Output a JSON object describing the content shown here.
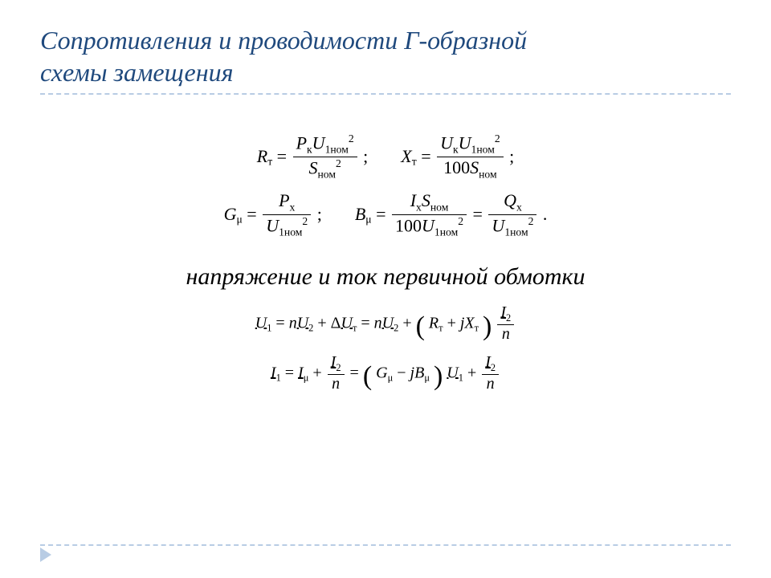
{
  "colors": {
    "title": "#1f497d",
    "divider": "#b8cce4",
    "text": "#000000",
    "background": "#ffffff"
  },
  "typography": {
    "title_fontsize": 32,
    "subtitle_fontsize": 30,
    "formula_fontsize": 22,
    "formula_small_fontsize": 20,
    "family": "Times New Roman",
    "title_style": "italic",
    "subtitle_style": "italic"
  },
  "title_line1": "Сопротивления и проводимости Г-образной",
  "title_line2": "схемы замещения",
  "subtitle": "напряжение и ток первичной обмотки",
  "eq1": {
    "R_sym": "R",
    "R_sub": "т",
    "eq": "=",
    "num": {
      "P": "P",
      "Psub": "к",
      "U": "U",
      "Usub": "1ном",
      "Usup": "2"
    },
    "den": {
      "S": "S",
      "Ssub": "ном",
      "Ssup": "2"
    },
    "semi": ";",
    "X_sym": "X",
    "X_sub": "т",
    "num2": {
      "U1": "U",
      "U1sub": "к",
      "U2": "U",
      "U2sub": "1ном",
      "U2sup": "2"
    },
    "den2": {
      "c": "100",
      "S": "S",
      "Ssub": "ном"
    },
    "semi2": ";"
  },
  "eq2": {
    "G_sym": "G",
    "G_sub": "μ",
    "eq": "=",
    "num": {
      "P": "P",
      "Psub": "х"
    },
    "den": {
      "U": "U",
      "Usub": "1ном",
      "Usup": "2"
    },
    "semi": ";",
    "B_sym": "B",
    "B_sub": "μ",
    "num2": {
      "I": "I",
      "Isub": "х",
      "S": "S",
      "Ssub": "ном"
    },
    "den2": {
      "c": "100",
      "U": "U",
      "Usub": "1ном",
      "Usup": "2"
    },
    "eq2": "=",
    "num3": {
      "Q": "Q",
      "Qsub": "х"
    },
    "den3": {
      "U": "U",
      "Usub": "1ном",
      "Usup": "2"
    },
    "dot": "."
  },
  "eq3": {
    "U1": "U",
    "U1sub": "1",
    "eq": "=",
    "n": "n",
    "U2": "U",
    "U2sub": "2",
    "plus": "+",
    "D": "Δ",
    "Ut": "U",
    "Utsub": "т",
    "Rt": "R",
    "Rtsub": "т",
    "j": "j",
    "Xt": "X",
    "Xtsub": "т",
    "I2": "I",
    "I2sub": "2",
    "nn": "n"
  },
  "eq4": {
    "I1": "I",
    "I1sub": "1",
    "eq": "=",
    "Imu": "I",
    "Imusub": "μ",
    "plus": "+",
    "I2": "I",
    "I2sub": "2",
    "n": "n",
    "G": "G",
    "Gsub": "μ",
    "minus": "−",
    "j": "j",
    "B": "B",
    "Bsub": "μ",
    "U1": "U",
    "U1s": "1"
  }
}
